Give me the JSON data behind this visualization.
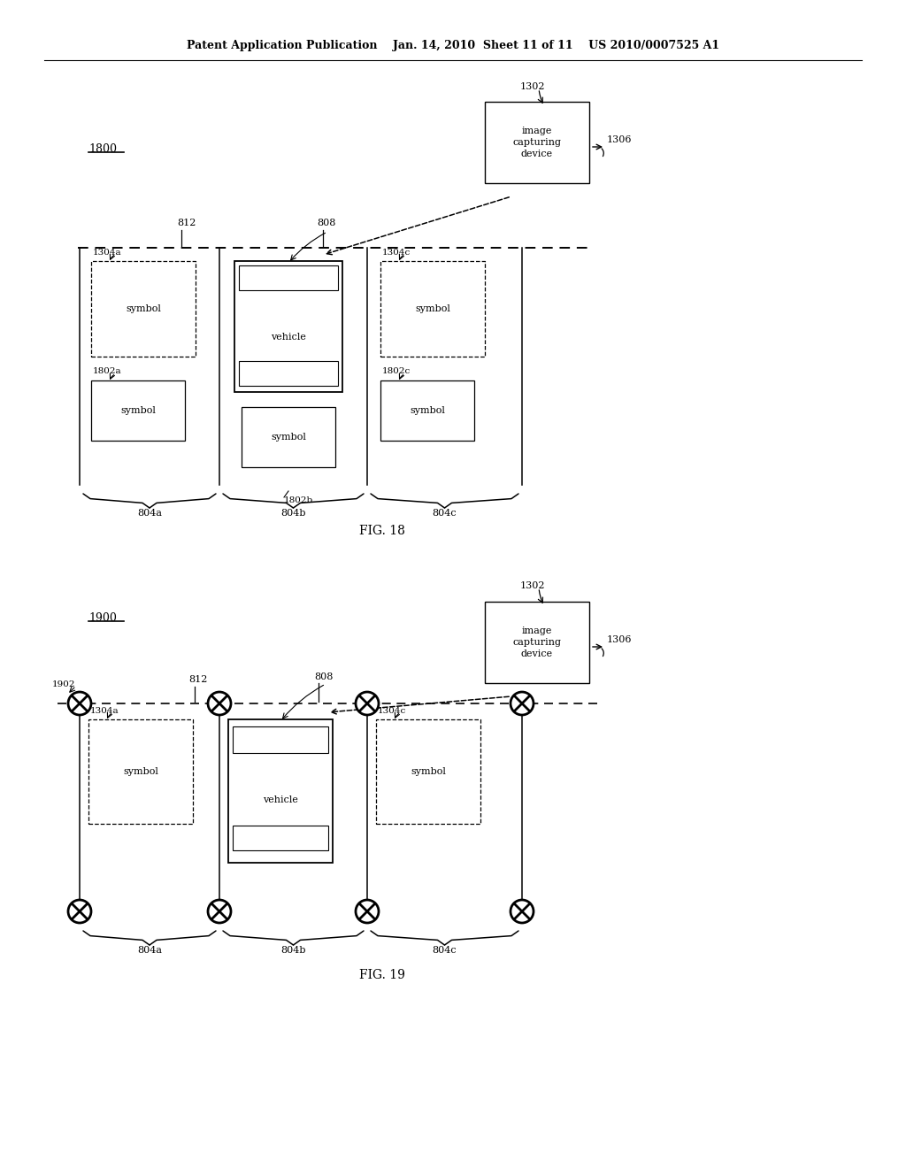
{
  "bg_color": "#ffffff",
  "text_color": "#000000",
  "line_color": "#000000",
  "header": "Patent Application Publication    Jan. 14, 2010  Sheet 11 of 11    US 2010/0007525 A1",
  "fig18_label": "FIG. 18",
  "fig19_label": "FIG. 19"
}
